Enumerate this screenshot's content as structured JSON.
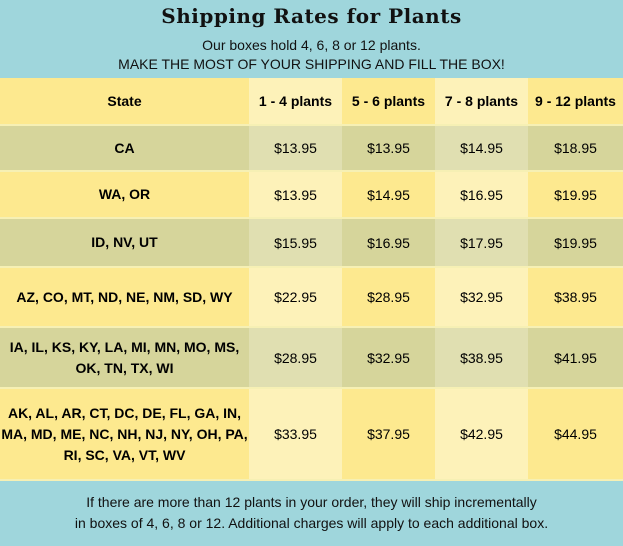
{
  "header": {
    "title": "Shipping Rates for Plants",
    "line1": "Our boxes hold 4, 6, 8 or 12 plants.",
    "line2": "MAKE THE MOST OF YOUR SHIPPING AND FILL THE BOX!"
  },
  "table": {
    "headers": [
      "State",
      "1 - 4 plants",
      "5 - 6 plants",
      "7 - 8 plants",
      "9 - 12 plants"
    ],
    "rows": [
      {
        "state": "CA",
        "prices": [
          "$13.95",
          "$13.95",
          "$14.95",
          "$18.95"
        ]
      },
      {
        "state": "WA, OR",
        "prices": [
          "$13.95",
          "$14.95",
          "$16.95",
          "$19.95"
        ]
      },
      {
        "state": "ID, NV, UT",
        "prices": [
          "$15.95",
          "$16.95",
          "$17.95",
          "$19.95"
        ]
      },
      {
        "state": "AZ, CO, MT, ND, NE, NM, SD, WY",
        "prices": [
          "$22.95",
          "$28.95",
          "$32.95",
          "$38.95"
        ]
      },
      {
        "state": "IA, IL, KS, KY, LA, MI, MN, MO, MS, OK, TN, TX, WI",
        "prices": [
          "$28.95",
          "$32.95",
          "$38.95",
          "$41.95"
        ]
      },
      {
        "state": "AK, AL, AR, CT, DC, DE, FL, GA, IN, MA, MD, ME, NC, NH, NJ, NY, OH, PA, RI, SC, VA, VT, WV",
        "prices": [
          "$33.95",
          "$37.95",
          "$42.95",
          "$44.95"
        ]
      }
    ]
  },
  "footer": {
    "line1": "If there are more than 12 plants in your order, they will ship incrementally",
    "line2": "in boxes of 4, 6, 8 or 12. Additional charges will apply to each additional box."
  },
  "colors": {
    "background": "#9fd6dc",
    "row_yellow": "#fde98f",
    "row_light_yellow": "#fdf2b9",
    "row_olive": "#d6d59b",
    "row_light_olive": "#e0dfb1"
  }
}
